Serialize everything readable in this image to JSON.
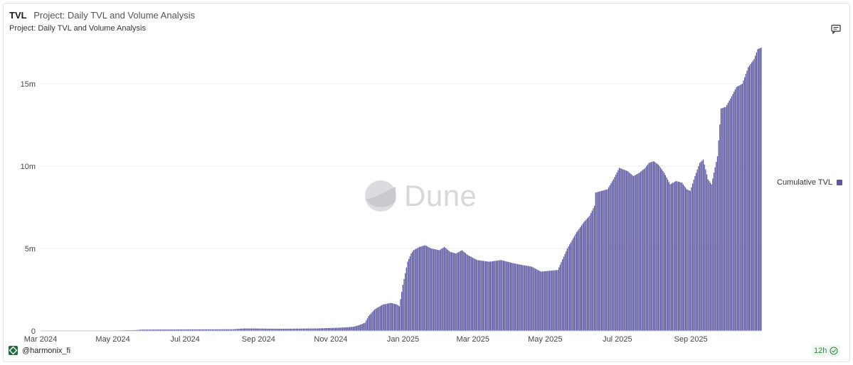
{
  "header": {
    "tab_title": "TVL",
    "query_title": "Project: Daily TVL and Volume Analysis",
    "chart_subtitle": "Project: Daily TVL and Volume Analysis"
  },
  "icons": {
    "comment": "comment-icon",
    "status": "check-circle-icon",
    "brand": "harmonix-logo-icon"
  },
  "colors": {
    "series": "#5c58a0",
    "status": "#2b8a45"
  },
  "watermark": "Dune",
  "footer": {
    "author": "@harmonix_fi",
    "refresh": "12h"
  },
  "chart_data": {
    "type": "bar",
    "title": "Project: Daily TVL and Volume Analysis",
    "xlabel": "",
    "ylabel": "",
    "grid": true,
    "legend_placement": "right",
    "ylim": [
      0,
      17500000
    ],
    "y_ticks": [
      {
        "value": 0,
        "label": "0"
      },
      {
        "value": 5000000,
        "label": "5m"
      },
      {
        "value": 10000000,
        "label": "10m"
      },
      {
        "value": 15000000,
        "label": "15m"
      }
    ],
    "x_range": [
      "2024-03-01",
      "2025-10-31"
    ],
    "x_ticks": [
      {
        "date": "2024-03-01",
        "label": "Mar 2024"
      },
      {
        "date": "2024-05-01",
        "label": "May 2024"
      },
      {
        "date": "2024-07-01",
        "label": "Jul 2024"
      },
      {
        "date": "2024-09-01",
        "label": "Sep 2024"
      },
      {
        "date": "2024-11-01",
        "label": "Nov 2024"
      },
      {
        "date": "2025-01-01",
        "label": "Jan 2025"
      },
      {
        "date": "2025-03-01",
        "label": "Mar 2025"
      },
      {
        "date": "2025-05-01",
        "label": "May 2025"
      },
      {
        "date": "2025-07-01",
        "label": "Jul 2025"
      },
      {
        "date": "2025-09-01",
        "label": "Sep 2025"
      }
    ],
    "series": [
      {
        "name": "Cumulative TVL",
        "color": "#5c58a0",
        "x": [
          "2024-03-01",
          "2024-04-10",
          "2024-05-20",
          "2024-05-25",
          "2024-07-01",
          "2024-08-10",
          "2024-08-20",
          "2024-09-20",
          "2024-10-20",
          "2024-11-10",
          "2024-11-20",
          "2024-11-25",
          "2024-11-30",
          "2024-12-03",
          "2024-12-08",
          "2024-12-15",
          "2024-12-22",
          "2024-12-27",
          "2024-12-29",
          "2025-01-01",
          "2025-01-05",
          "2025-01-08",
          "2025-01-10",
          "2025-01-15",
          "2025-01-20",
          "2025-01-25",
          "2025-02-01",
          "2025-02-05",
          "2025-02-10",
          "2025-02-15",
          "2025-02-20",
          "2025-02-25",
          "2025-03-05",
          "2025-03-15",
          "2025-03-25",
          "2025-04-05",
          "2025-04-12",
          "2025-04-20",
          "2025-04-25",
          "2025-04-28",
          "2025-05-05",
          "2025-05-12",
          "2025-05-20",
          "2025-05-28",
          "2025-06-03",
          "2025-06-08",
          "2025-06-12",
          "2025-06-13",
          "2025-06-18",
          "2025-06-23",
          "2025-06-28",
          "2025-07-03",
          "2025-07-10",
          "2025-07-15",
          "2025-07-20",
          "2025-07-25",
          "2025-07-28",
          "2025-08-01",
          "2025-08-05",
          "2025-08-10",
          "2025-08-15",
          "2025-08-20",
          "2025-08-25",
          "2025-08-29",
          "2025-09-01",
          "2025-09-05",
          "2025-09-09",
          "2025-09-12",
          "2025-09-16",
          "2025-09-19",
          "2025-09-21",
          "2025-09-24",
          "2025-09-27",
          "2025-10-01",
          "2025-10-05",
          "2025-10-10",
          "2025-10-15",
          "2025-10-20",
          "2025-10-25",
          "2025-10-28",
          "2025-10-31"
        ],
        "y": [
          0,
          0,
          50000,
          80000,
          90000,
          100000,
          150000,
          130000,
          150000,
          200000,
          250000,
          350000,
          500000,
          900000,
          1300000,
          1600000,
          1700000,
          1600000,
          1500000,
          2800000,
          4200000,
          4700000,
          4900000,
          5100000,
          5200000,
          5000000,
          4900000,
          5100000,
          4800000,
          4700000,
          4900000,
          4600000,
          4300000,
          4200000,
          4300000,
          4100000,
          4000000,
          3900000,
          3700000,
          3600000,
          3650000,
          3700000,
          5000000,
          6000000,
          6600000,
          7000000,
          7600000,
          8400000,
          8500000,
          8600000,
          9200000,
          9900000,
          9700000,
          9400000,
          9600000,
          9900000,
          10200000,
          10300000,
          10100000,
          9600000,
          8900000,
          9100000,
          9000000,
          8600000,
          8500000,
          9400000,
          10200000,
          10400000,
          9200000,
          8900000,
          9600000,
          10600000,
          13500000,
          13600000,
          14100000,
          14800000,
          15000000,
          16000000,
          16500000,
          17100000,
          17200000
        ]
      }
    ]
  }
}
